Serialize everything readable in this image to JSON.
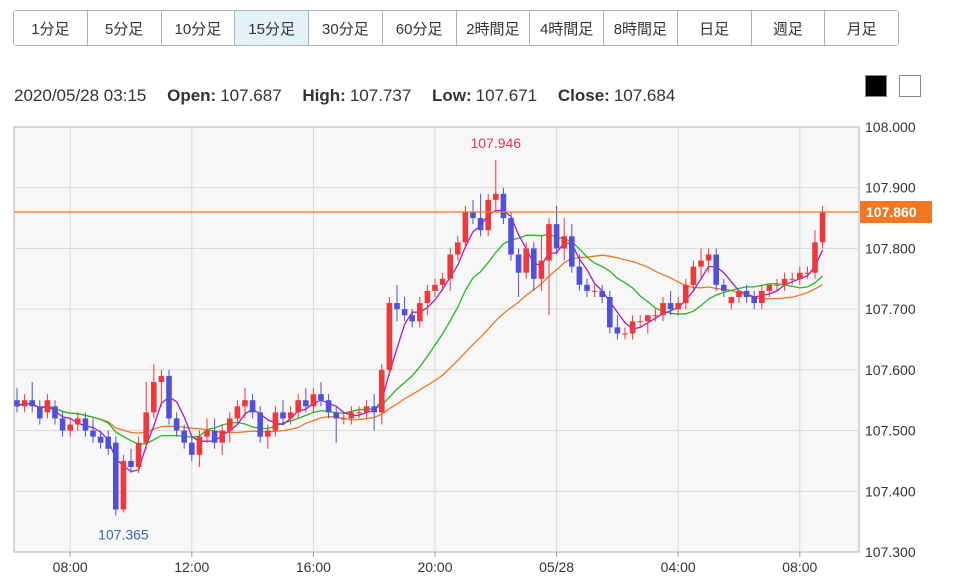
{
  "timeframes": [
    {
      "label": "1分足"
    },
    {
      "label": "5分足"
    },
    {
      "label": "10分足"
    },
    {
      "label": "15分足"
    },
    {
      "label": "30分足"
    },
    {
      "label": "60分足"
    },
    {
      "label": "2時間足"
    },
    {
      "label": "4時間足"
    },
    {
      "label": "8時間足"
    },
    {
      "label": "日足"
    },
    {
      "label": "週足"
    },
    {
      "label": "月足"
    }
  ],
  "active_timeframe": "15分足",
  "ohlc": {
    "datetime": "2020/05/28 03:15",
    "open_label": "Open:",
    "open": "107.687",
    "high_label": "High:",
    "high": "107.737",
    "low_label": "Low:",
    "low": "107.671",
    "close_label": "Close:",
    "close": "107.684"
  },
  "colors": {
    "up": "#f0373c",
    "down": "#5050d8",
    "ma_short": "#9a1fd0",
    "ma_mid": "#22b822",
    "ma_long": "#f07820",
    "price_line": "#f07820",
    "high_label": "#e0365a",
    "low_label": "#3a66b0"
  },
  "chart_data": {
    "type": "candlestick",
    "y_range": [
      107.3,
      108.0
    ],
    "y_ticks": [
      "108.000",
      "107.900",
      "107.800",
      "107.700",
      "107.600",
      "107.500",
      "107.400",
      "107.300"
    ],
    "x_ticks": [
      "08:00",
      "12:00",
      "16:00",
      "20:00",
      "05/28",
      "04:00",
      "08:00"
    ],
    "current_price": "107.860",
    "high_marker": "107.946",
    "low_marker": "107.365",
    "candles": [
      [
        107.55,
        107.57,
        107.53,
        107.54
      ],
      [
        107.54,
        107.56,
        107.53,
        107.55
      ],
      [
        107.55,
        107.58,
        107.53,
        107.54
      ],
      [
        107.54,
        107.55,
        107.51,
        107.52
      ],
      [
        107.53,
        107.56,
        107.52,
        107.55
      ],
      [
        107.54,
        107.55,
        107.51,
        107.52
      ],
      [
        107.52,
        107.53,
        107.49,
        107.5
      ],
      [
        107.5,
        107.52,
        107.49,
        107.51
      ],
      [
        107.51,
        107.53,
        107.5,
        107.52
      ],
      [
        107.52,
        107.53,
        107.49,
        107.5
      ],
      [
        107.5,
        107.52,
        107.48,
        107.49
      ],
      [
        107.49,
        107.5,
        107.47,
        107.48
      ],
      [
        107.49,
        107.5,
        107.46,
        107.47
      ],
      [
        107.48,
        107.49,
        107.36,
        107.37
      ],
      [
        107.37,
        107.46,
        107.365,
        107.45
      ],
      [
        107.45,
        107.47,
        107.43,
        107.44
      ],
      [
        107.44,
        107.49,
        107.43,
        107.48
      ],
      [
        107.48,
        107.58,
        107.47,
        107.53
      ],
      [
        107.53,
        107.61,
        107.52,
        107.58
      ],
      [
        107.58,
        107.6,
        107.54,
        107.59
      ],
      [
        107.59,
        107.6,
        107.51,
        107.52
      ],
      [
        107.52,
        107.53,
        107.49,
        107.5
      ],
      [
        107.5,
        107.51,
        107.47,
        107.48
      ],
      [
        107.48,
        107.49,
        107.45,
        107.46
      ],
      [
        107.46,
        107.5,
        107.44,
        107.49
      ],
      [
        107.49,
        107.52,
        107.48,
        107.5
      ],
      [
        107.5,
        107.52,
        107.47,
        107.48
      ],
      [
        107.48,
        107.51,
        107.46,
        107.5
      ],
      [
        107.5,
        107.53,
        107.48,
        107.52
      ],
      [
        107.52,
        107.55,
        107.51,
        107.54
      ],
      [
        107.54,
        107.57,
        107.52,
        107.55
      ],
      [
        107.55,
        107.56,
        107.52,
        107.53
      ],
      [
        107.53,
        107.54,
        107.48,
        107.49
      ],
      [
        107.49,
        107.51,
        107.47,
        107.5
      ],
      [
        107.5,
        107.54,
        107.49,
        107.53
      ],
      [
        107.53,
        107.55,
        107.51,
        107.52
      ],
      [
        107.52,
        107.54,
        107.51,
        107.53
      ],
      [
        107.53,
        107.56,
        107.52,
        107.55
      ],
      [
        107.55,
        107.57,
        107.53,
        107.54
      ],
      [
        107.54,
        107.57,
        107.53,
        107.56
      ],
      [
        107.56,
        107.58,
        107.54,
        107.55
      ],
      [
        107.55,
        107.56,
        107.52,
        107.53
      ],
      [
        107.53,
        107.54,
        107.48,
        107.52
      ],
      [
        107.52,
        107.53,
        107.51,
        107.52
      ],
      [
        107.52,
        107.54,
        107.51,
        107.53
      ],
      [
        107.53,
        107.54,
        107.52,
        107.53
      ],
      [
        107.53,
        107.55,
        107.52,
        107.54
      ],
      [
        107.54,
        107.56,
        107.5,
        107.53
      ],
      [
        107.53,
        107.61,
        107.51,
        107.6
      ],
      [
        107.6,
        107.72,
        107.59,
        107.71
      ],
      [
        107.71,
        107.74,
        107.68,
        107.7
      ],
      [
        107.7,
        107.72,
        107.68,
        107.69
      ],
      [
        107.69,
        107.7,
        107.67,
        107.68
      ],
      [
        107.68,
        107.72,
        107.67,
        107.71
      ],
      [
        107.71,
        107.74,
        107.69,
        107.73
      ],
      [
        107.73,
        107.75,
        107.72,
        107.74
      ],
      [
        107.74,
        107.76,
        107.73,
        107.75
      ],
      [
        107.75,
        107.8,
        107.73,
        107.79
      ],
      [
        107.79,
        107.82,
        107.78,
        107.81
      ],
      [
        107.81,
        107.87,
        107.8,
        107.86
      ],
      [
        107.86,
        107.88,
        107.84,
        107.85
      ],
      [
        107.85,
        107.89,
        107.82,
        107.83
      ],
      [
        107.83,
        107.89,
        107.82,
        107.88
      ],
      [
        107.88,
        107.946,
        107.86,
        107.89
      ],
      [
        107.89,
        107.9,
        107.84,
        107.85
      ],
      [
        107.85,
        107.86,
        107.78,
        107.79
      ],
      [
        107.79,
        107.8,
        107.72,
        107.76
      ],
      [
        107.76,
        107.81,
        107.75,
        107.8
      ],
      [
        107.8,
        107.81,
        107.73,
        107.75
      ],
      [
        107.75,
        107.82,
        107.73,
        107.78
      ],
      [
        107.78,
        107.85,
        107.69,
        107.84
      ],
      [
        107.84,
        107.87,
        107.79,
        107.8
      ],
      [
        107.8,
        107.85,
        107.78,
        107.82
      ],
      [
        107.82,
        107.84,
        107.76,
        107.77
      ],
      [
        107.77,
        107.79,
        107.73,
        107.74
      ],
      [
        107.74,
        107.75,
        107.72,
        107.73
      ],
      [
        107.73,
        107.74,
        107.72,
        107.73
      ],
      [
        107.73,
        107.74,
        107.71,
        107.72
      ],
      [
        107.72,
        107.73,
        107.66,
        107.67
      ],
      [
        107.67,
        107.69,
        107.65,
        107.66
      ],
      [
        107.66,
        107.67,
        107.65,
        107.66
      ],
      [
        107.66,
        107.69,
        107.65,
        107.68
      ],
      [
        107.68,
        107.69,
        107.67,
        107.68
      ],
      [
        107.68,
        107.69,
        107.66,
        107.69
      ],
      [
        107.69,
        107.7,
        107.68,
        107.69
      ],
      [
        107.69,
        107.72,
        107.68,
        107.71
      ],
      [
        107.71,
        107.73,
        107.69,
        107.7
      ],
      [
        107.7,
        107.72,
        107.69,
        107.71
      ],
      [
        107.71,
        107.75,
        107.7,
        107.74
      ],
      [
        107.74,
        107.78,
        107.73,
        107.77
      ],
      [
        107.77,
        107.8,
        107.75,
        107.78
      ],
      [
        107.78,
        107.8,
        107.76,
        107.79
      ],
      [
        107.79,
        107.8,
        107.73,
        107.74
      ],
      [
        107.74,
        107.75,
        107.72,
        107.73
      ],
      [
        107.71,
        107.72,
        107.7,
        107.72
      ],
      [
        107.72,
        107.73,
        107.71,
        107.73
      ],
      [
        107.73,
        107.74,
        107.71,
        107.72
      ],
      [
        107.72,
        107.73,
        107.7,
        107.71
      ],
      [
        107.71,
        107.74,
        107.7,
        107.73
      ],
      [
        107.73,
        107.74,
        107.72,
        107.74
      ],
      [
        107.74,
        107.75,
        107.73,
        107.74
      ],
      [
        107.74,
        107.76,
        107.73,
        107.75
      ],
      [
        107.75,
        107.76,
        107.74,
        107.75
      ],
      [
        107.75,
        107.77,
        107.74,
        107.76
      ],
      [
        107.76,
        107.77,
        107.75,
        107.76
      ],
      [
        107.76,
        107.83,
        107.75,
        107.81
      ],
      [
        107.81,
        107.87,
        107.8,
        107.86
      ]
    ]
  }
}
